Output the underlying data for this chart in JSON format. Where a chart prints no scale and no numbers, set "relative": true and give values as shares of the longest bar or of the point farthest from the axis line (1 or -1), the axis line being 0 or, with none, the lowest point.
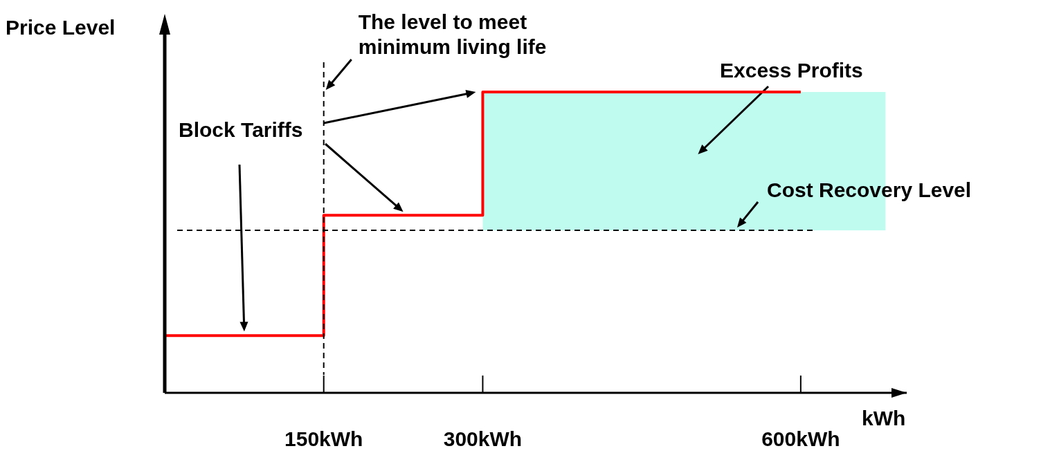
{
  "chart_data": {
    "type": "step",
    "xlabel": "kWh",
    "ylabel": "Price Level",
    "relative": true,
    "xlim": [
      0,
      700
    ],
    "xticks": [
      {
        "value": 150,
        "label": "150kWh"
      },
      {
        "value": 300,
        "label": "300kWh"
      },
      {
        "value": 600,
        "label": "600kWh"
      }
    ],
    "x": [
      0,
      150,
      300,
      600
    ],
    "series": [
      {
        "values": [
          0.19,
          0.59,
          1,
          1
        ],
        "color": "#ff0000"
      }
    ],
    "ref_lines": [
      {
        "axis": "x",
        "value": 150,
        "line_style": "dashed",
        "color": "#000000"
      },
      {
        "axis": "y",
        "value": 0.54,
        "line_style": "dashed",
        "color": "#000000"
      }
    ],
    "bands": [
      {
        "axis": "x",
        "from": 300,
        "to": 680,
        "label": "Excess Profits",
        "color": "#c0fbef"
      }
    ],
    "annotations": [
      "Block Tariffs",
      {
        "text": "The level to meet minimum living life",
        "x": 150,
        "y": 1
      },
      {
        "text": "Cost Recovery Level",
        "x": 540,
        "y": 0.54
      }
    ]
  }
}
